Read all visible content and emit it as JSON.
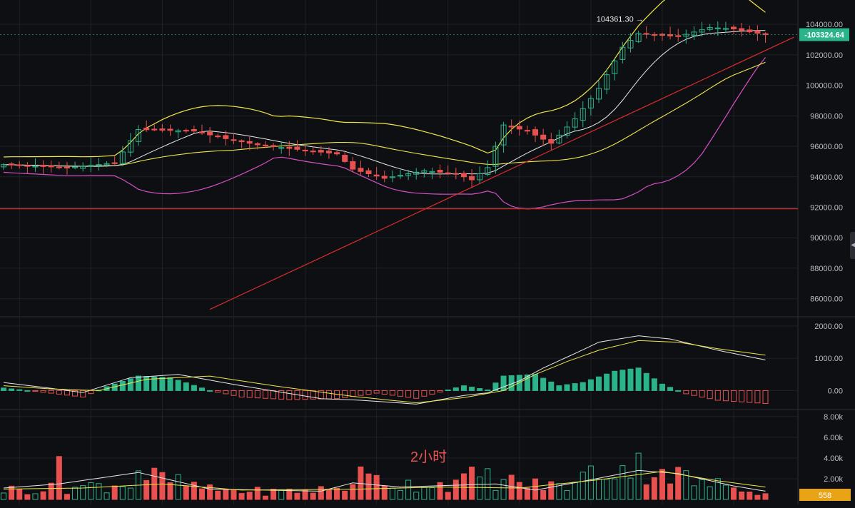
{
  "colors": {
    "background": "#0e0f12",
    "grid": "#1f2126",
    "axis_text": "#b8bcc4",
    "up": "#2bb38a",
    "down": "#e8514f",
    "bb_upper": "#f0e64a",
    "bb_lower": "#d44fc4",
    "ma_fast": "#e8e8e8",
    "ma_slow": "#f0e64a",
    "trendline": "#d82e2e",
    "support": "#d82e2e",
    "last_price_tag": "#2bb38a",
    "volume_tag": "#e8a317"
  },
  "chart_data": [
    {
      "type": "candlestick",
      "panel": "price",
      "interval_label": "2小时",
      "y_ticks": [
        86000,
        88000,
        90000,
        92000,
        94000,
        96000,
        98000,
        100000,
        102000,
        104000
      ],
      "y_tick_labels": [
        "86000.00",
        "88000.00",
        "90000.00",
        "92000.00",
        "94000.00",
        "96000.00",
        "98000.00",
        "100000.00",
        "102000.00",
        "104000.00"
      ],
      "ylim": [
        85000,
        105600
      ],
      "last_price": 103324.64,
      "last_price_label": "103324.64",
      "high_marker_value": 104361.3,
      "high_marker_label": "104361.30",
      "support_level": 91900,
      "trendline": {
        "from": {
          "bar": 26,
          "price": 85300
        },
        "to": {
          "bar": 96,
          "price": 102600
        }
      },
      "indicators": [
        "Bollinger Bands",
        "Moving Averages"
      ],
      "close_path": [
        [
          0,
          94800
        ],
        [
          8,
          94600
        ],
        [
          14,
          94900
        ],
        [
          17,
          97100
        ],
        [
          24,
          97000
        ],
        [
          28,
          96500
        ],
        [
          32,
          96100
        ],
        [
          37,
          95800
        ],
        [
          42,
          95500
        ],
        [
          44,
          94500
        ],
        [
          48,
          93900
        ],
        [
          53,
          94400
        ],
        [
          57,
          94200
        ],
        [
          59,
          93800
        ],
        [
          61,
          94600
        ],
        [
          63,
          97400
        ],
        [
          66,
          97000
        ],
        [
          69,
          96200
        ],
        [
          72,
          97800
        ],
        [
          75,
          99800
        ],
        [
          78,
          102500
        ],
        [
          80,
          103400
        ],
        [
          85,
          103200
        ],
        [
          89,
          103800
        ],
        [
          92,
          103700
        ],
        [
          96,
          103324.64
        ]
      ]
    },
    {
      "type": "histogram+lines",
      "panel": "macd",
      "y_ticks": [
        0,
        1000,
        2000
      ],
      "y_tick_labels": [
        "0.00",
        "1000.00",
        "2000.00"
      ],
      "ylim": [
        -500,
        2200
      ],
      "histogram_path": [
        [
          0,
          80
        ],
        [
          6,
          -80
        ],
        [
          10,
          -200
        ],
        [
          13,
          120
        ],
        [
          17,
          450
        ],
        [
          21,
          400
        ],
        [
          26,
          0
        ],
        [
          30,
          -200
        ],
        [
          36,
          -280
        ],
        [
          42,
          -250
        ],
        [
          47,
          -80
        ],
        [
          52,
          -240
        ],
        [
          58,
          150
        ],
        [
          61,
          20
        ],
        [
          63,
          450
        ],
        [
          67,
          500
        ],
        [
          70,
          150
        ],
        [
          73,
          250
        ],
        [
          77,
          600
        ],
        [
          80,
          700
        ],
        [
          83,
          200
        ],
        [
          86,
          -100
        ],
        [
          90,
          -300
        ],
        [
          96,
          -400
        ]
      ],
      "line1_path": [
        [
          0,
          250
        ],
        [
          5,
          100
        ],
        [
          10,
          -60
        ],
        [
          16,
          400
        ],
        [
          22,
          500
        ],
        [
          30,
          150
        ],
        [
          40,
          -250
        ],
        [
          45,
          -300
        ],
        [
          52,
          -420
        ],
        [
          58,
          -150
        ],
        [
          61,
          -70
        ],
        [
          65,
          300
        ],
        [
          68,
          700
        ],
        [
          72,
          1150
        ],
        [
          75,
          1500
        ],
        [
          80,
          1700
        ],
        [
          84,
          1600
        ],
        [
          90,
          1250
        ],
        [
          96,
          950
        ]
      ],
      "line2_path": [
        [
          0,
          150
        ],
        [
          6,
          50
        ],
        [
          12,
          0
        ],
        [
          18,
          350
        ],
        [
          26,
          450
        ],
        [
          34,
          150
        ],
        [
          44,
          -180
        ],
        [
          52,
          -380
        ],
        [
          58,
          -220
        ],
        [
          63,
          0
        ],
        [
          67,
          500
        ],
        [
          71,
          900
        ],
        [
          75,
          1250
        ],
        [
          80,
          1550
        ],
        [
          85,
          1500
        ],
        [
          90,
          1300
        ],
        [
          96,
          1100
        ]
      ]
    },
    {
      "type": "bar",
      "panel": "volume",
      "y_ticks": [
        2000,
        4000,
        6000,
        8000
      ],
      "y_tick_labels": [
        "2.00k",
        "4.00k",
        "6.00k",
        "8.00k"
      ],
      "ylim": [
        0,
        8400
      ],
      "last_volume": 558,
      "last_volume_label": "558",
      "volume_path": [
        [
          0,
          900
        ],
        [
          6,
          1000
        ],
        [
          7,
          4400
        ],
        [
          8,
          1100
        ],
        [
          16,
          1500
        ],
        [
          17,
          2800
        ],
        [
          18,
          2200
        ],
        [
          26,
          900
        ],
        [
          34,
          700
        ],
        [
          43,
          1000
        ],
        [
          44,
          2300
        ],
        [
          50,
          1400
        ],
        [
          57,
          1500
        ],
        [
          60,
          2300
        ],
        [
          62,
          1800
        ],
        [
          69,
          1200
        ],
        [
          72,
          1500
        ],
        [
          74,
          2500
        ],
        [
          79,
          3200
        ],
        [
          83,
          2800
        ],
        [
          88,
          1400
        ],
        [
          93,
          1300
        ],
        [
          96,
          558
        ]
      ],
      "ma_fast_path": [
        [
          0,
          1100
        ],
        [
          7,
          1500
        ],
        [
          17,
          2600
        ],
        [
          26,
          1000
        ],
        [
          40,
          800
        ],
        [
          44,
          1600
        ],
        [
          50,
          1200
        ],
        [
          62,
          1500
        ],
        [
          67,
          900
        ],
        [
          74,
          1900
        ],
        [
          80,
          2800
        ],
        [
          85,
          2500
        ],
        [
          92,
          1300
        ],
        [
          96,
          800
        ]
      ],
      "ma_slow_path": [
        [
          0,
          1000
        ],
        [
          10,
          1100
        ],
        [
          20,
          1500
        ],
        [
          30,
          900
        ],
        [
          45,
          1000
        ],
        [
          55,
          1200
        ],
        [
          65,
          1100
        ],
        [
          75,
          1900
        ],
        [
          83,
          2700
        ],
        [
          90,
          1800
        ],
        [
          96,
          1200
        ]
      ]
    }
  ]
}
